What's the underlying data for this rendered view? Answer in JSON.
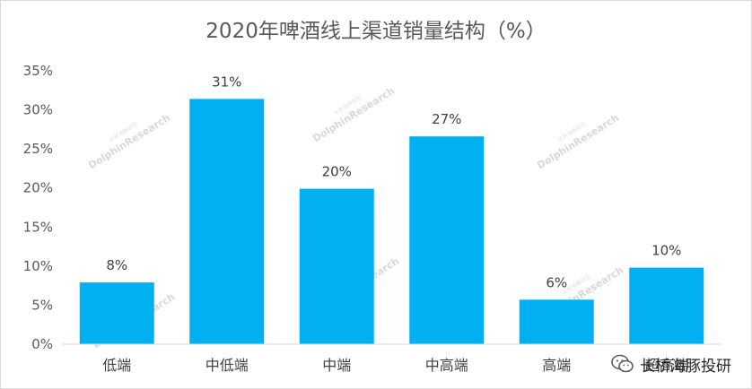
{
  "chart_data": {
    "type": "bar",
    "title": "2020年啤酒线上渠道销量结构（%）",
    "categories": [
      "低端",
      "中低端",
      "中端",
      "中高端",
      "高端",
      "超高端"
    ],
    "values": [
      8,
      31,
      20,
      27,
      6,
      10
    ],
    "data_labels": [
      "8%",
      "31%",
      "20%",
      "27%",
      "6%",
      "10%"
    ],
    "bar_values_precise": [
      7.9,
      31.4,
      19.9,
      26.6,
      5.7,
      9.8
    ],
    "ylim": [
      0,
      35
    ],
    "yticks": [
      "0%",
      "5%",
      "10%",
      "15%",
      "20%",
      "25%",
      "30%",
      "35%"
    ],
    "grid": false,
    "color": "#00B0F0",
    "xlabel": "",
    "ylabel": ""
  },
  "watermark": {
    "text": "DolphinResearch",
    "sub_text": "长桥海豚研究"
  },
  "brand": {
    "name": "长桥海豚投研",
    "icon": "wechat-icon"
  }
}
